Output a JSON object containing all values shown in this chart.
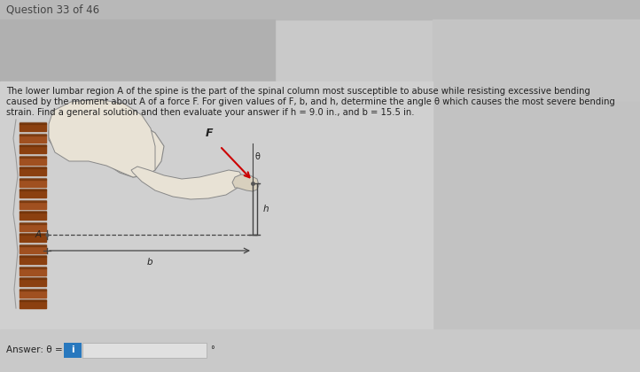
{
  "title": "Question 33 of 46",
  "title_fontsize": 8.5,
  "title_color": "#444444",
  "bg_color": "#c9c9c9",
  "problem_text_line1": "The lower lumbar region A of the spine is the part of the spinal column most susceptible to abuse while resisting excessive bending",
  "problem_text_line2": "caused by the moment about A of a force F. For given values of F, b, and h, determine the angle θ which causes the most severe bending",
  "problem_text_line3": "strain. Find a general solution and then evaluate your answer if h = 9.0 in., and b = 15.5 in.",
  "answer_label": "Answer: θ =",
  "answer_unit": "°",
  "text_fontsize": 7.2,
  "answer_fontsize": 7.5,
  "input_box_color": "#2878be",
  "input_box_text": "i",
  "panel_top_bg": "#b8b8b8",
  "panel_topleft_bg": "#b0b0b0",
  "panel_topright_bg": "#c4c4c4",
  "panel_right_bg": "#c2c2c2",
  "content_bg": "#d0d0d0",
  "diagram_bg": "#d0d0d0",
  "answer_row_bg": "#c9c9c9",
  "answer_input_bg": "#e0e0e0",
  "answer_input_border": "#aaaaaa",
  "spine_color1": "#8B4010",
  "spine_color2": "#a05020",
  "body_fill": "#e8e2d5",
  "body_stroke": "#888888",
  "line_color": "#444444",
  "arrow_color": "#cc0000",
  "label_color": "#222222"
}
